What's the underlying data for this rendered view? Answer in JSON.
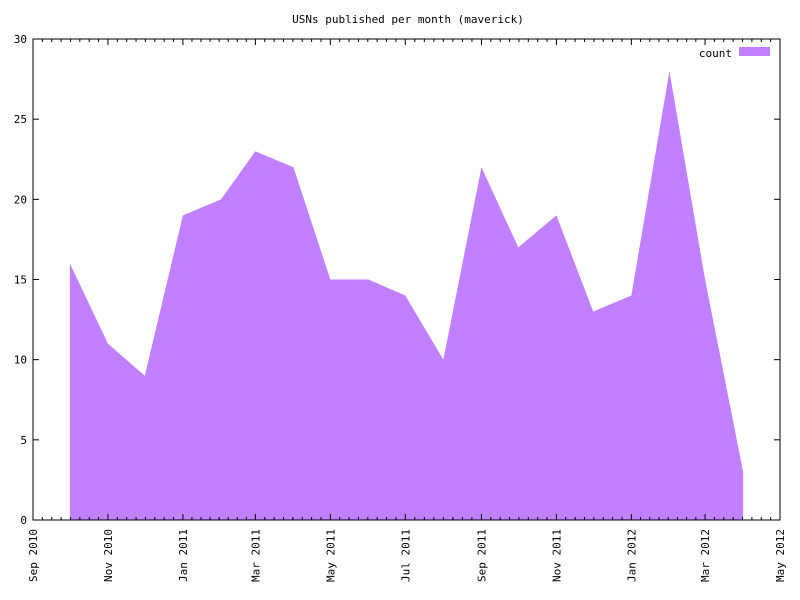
{
  "chart_data": {
    "type": "area",
    "title": "USNs published per month (maverick)",
    "xlabel": "",
    "ylabel": "",
    "x_range": [
      "2010-09-01",
      "2012-05-01"
    ],
    "ylim": [
      0,
      30
    ],
    "y_ticks": [
      0,
      5,
      10,
      15,
      20,
      25,
      30
    ],
    "x_ticks": [
      {
        "date": "2010-09-01",
        "label": "Sep 2010"
      },
      {
        "date": "2010-11-01",
        "label": "Nov 2010"
      },
      {
        "date": "2011-01-01",
        "label": "Jan 2011"
      },
      {
        "date": "2011-03-01",
        "label": "Mar 2011"
      },
      {
        "date": "2011-05-01",
        "label": "May 2011"
      },
      {
        "date": "2011-07-01",
        "label": "Jul 2011"
      },
      {
        "date": "2011-09-01",
        "label": "Sep 2011"
      },
      {
        "date": "2011-11-01",
        "label": "Nov 2011"
      },
      {
        "date": "2012-01-01",
        "label": "Jan 2012"
      },
      {
        "date": "2012-03-01",
        "label": "Mar 2012"
      },
      {
        "date": "2012-05-01",
        "label": "May 2012"
      }
    ],
    "grid": false,
    "legend_position": "top-right",
    "series": [
      {
        "name": "count",
        "color": "#c080ff",
        "points": [
          {
            "x": "2010-10-01",
            "y": 16
          },
          {
            "x": "2010-11-01",
            "y": 11
          },
          {
            "x": "2010-12-01",
            "y": 9
          },
          {
            "x": "2011-01-01",
            "y": 19
          },
          {
            "x": "2011-02-01",
            "y": 20
          },
          {
            "x": "2011-03-01",
            "y": 23
          },
          {
            "x": "2011-04-01",
            "y": 22
          },
          {
            "x": "2011-05-01",
            "y": 15
          },
          {
            "x": "2011-06-01",
            "y": 15
          },
          {
            "x": "2011-07-01",
            "y": 14
          },
          {
            "x": "2011-08-01",
            "y": 10
          },
          {
            "x": "2011-09-01",
            "y": 22
          },
          {
            "x": "2011-10-01",
            "y": 17
          },
          {
            "x": "2011-11-01",
            "y": 19
          },
          {
            "x": "2011-12-01",
            "y": 13
          },
          {
            "x": "2012-01-01",
            "y": 14
          },
          {
            "x": "2012-02-01",
            "y": 28
          },
          {
            "x": "2012-03-01",
            "y": 15
          },
          {
            "x": "2012-04-01",
            "y": 3
          }
        ]
      }
    ]
  }
}
